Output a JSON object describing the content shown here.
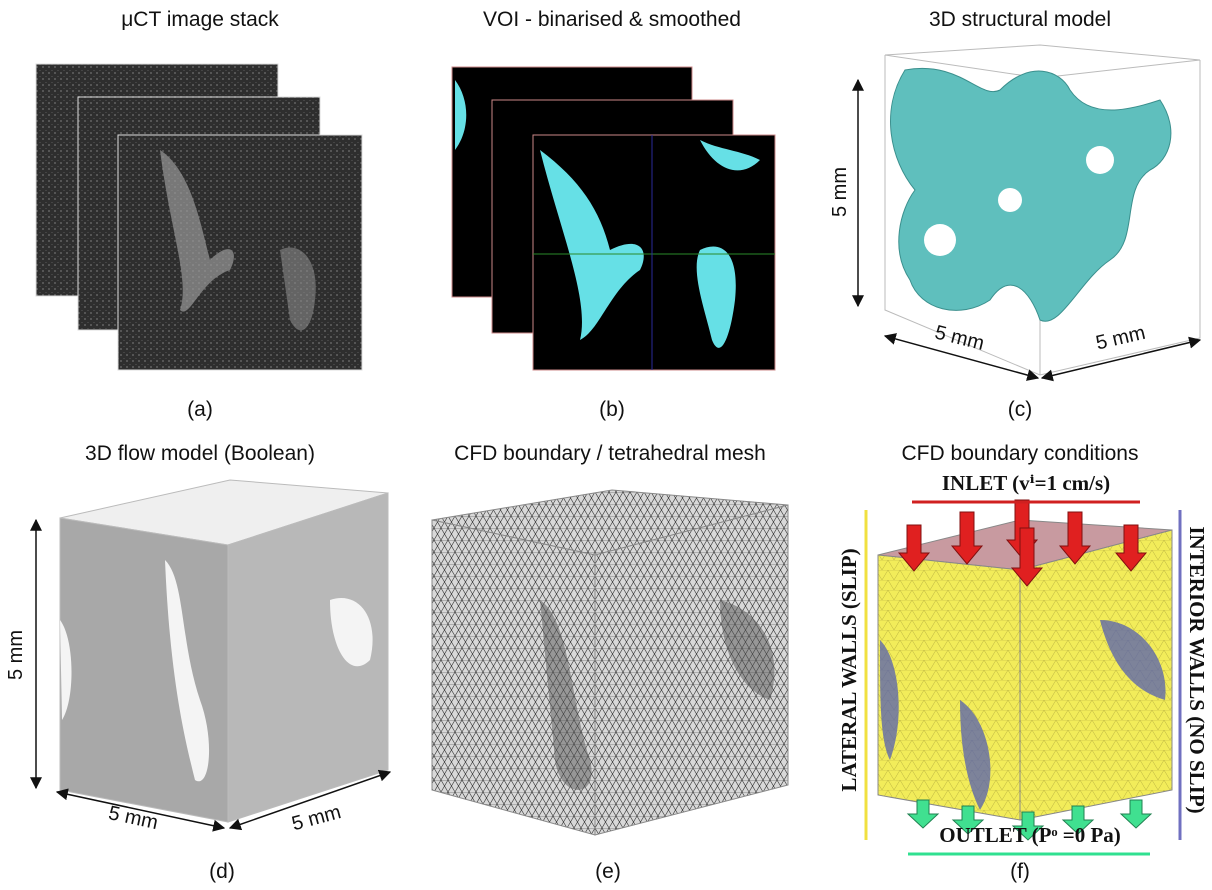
{
  "panels": [
    {
      "title": "μCT image stack",
      "label": "(a)"
    },
    {
      "title": "VOI - binarised & smoothed",
      "label": "(b)"
    },
    {
      "title": "3D structural model",
      "label": "(c)",
      "dimensions": [
        "5 mm",
        "5 mm",
        "5 mm"
      ]
    },
    {
      "title": "3D flow model (Boolean)",
      "label": "(d)",
      "dimensions": [
        "5 mm",
        "5 mm",
        "5 mm"
      ]
    },
    {
      "title": "CFD boundary / tetrahedral mesh",
      "label": "(e)"
    },
    {
      "title": "CFD boundary conditions",
      "label": "(f)",
      "inlet": "INLET (vⁱ=1 cm/s)",
      "outlet": "OUTLET (Pᵒ =0 Pa)",
      "lateral": "LATERAL WALLS (SLIP)",
      "interior": "INTERIOR WALLS (NO SLIP)"
    }
  ]
}
